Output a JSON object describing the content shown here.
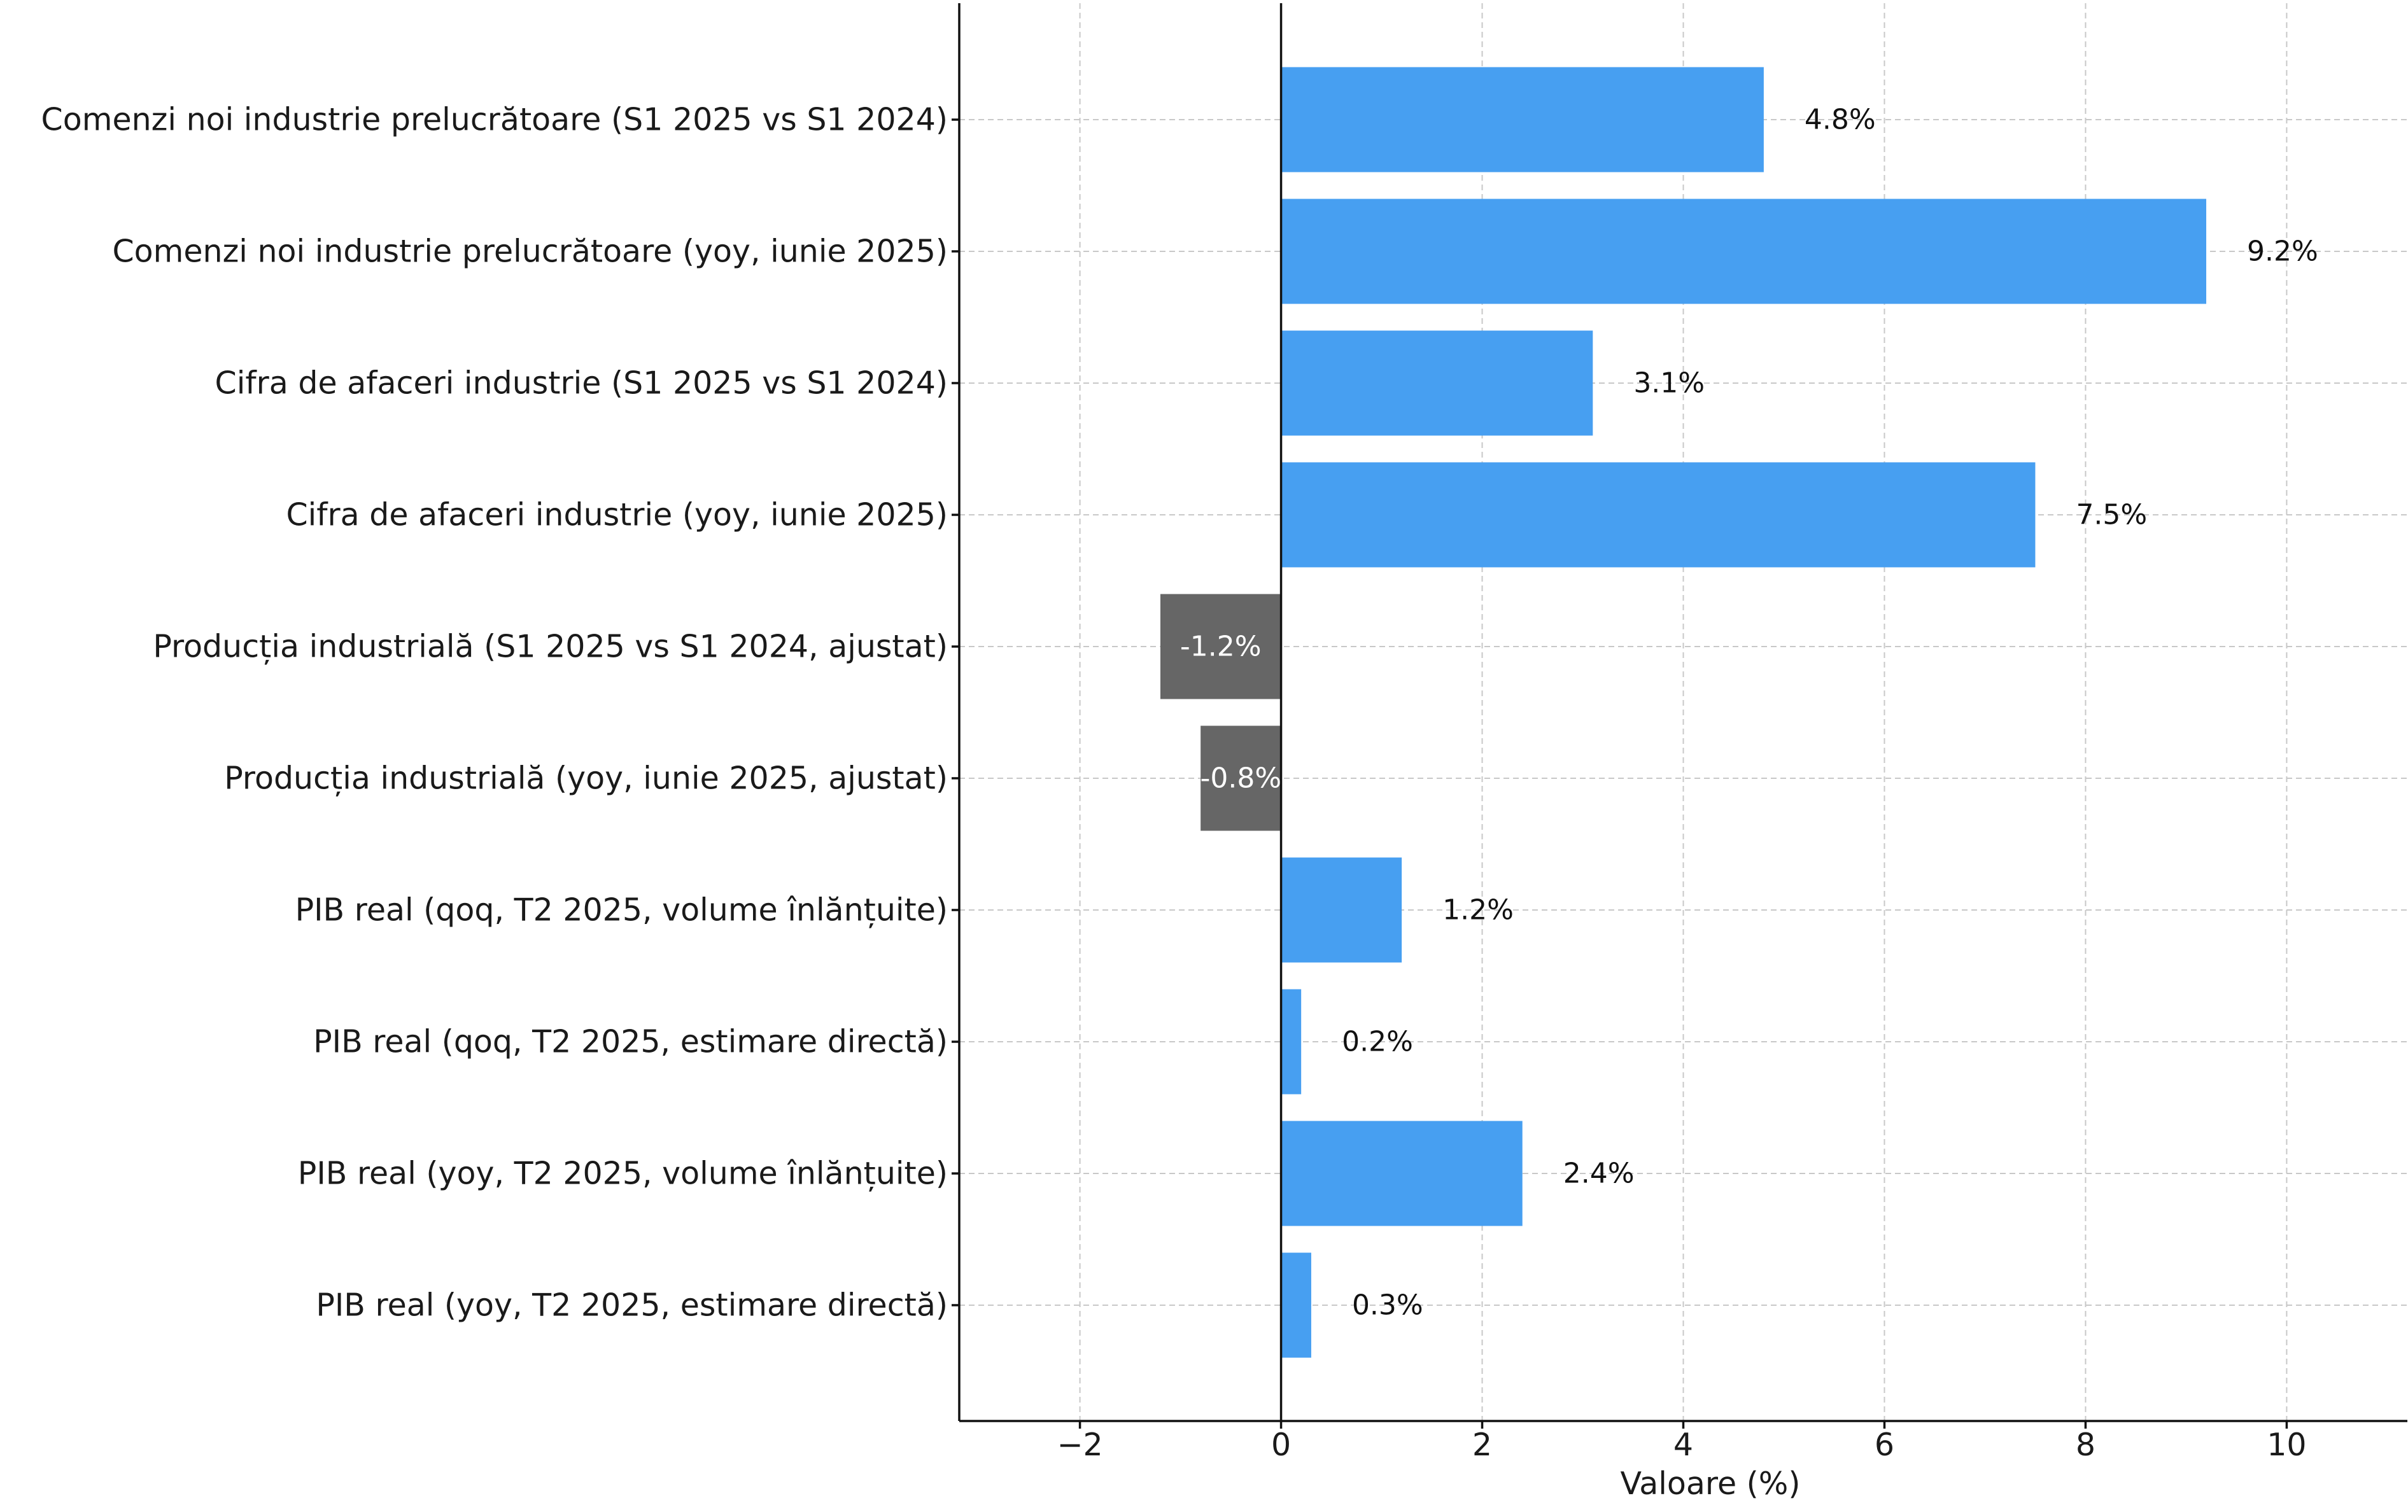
{
  "chart_data": {
    "type": "bar",
    "orientation": "horizontal",
    "title": "",
    "xlabel": "Valoare (%)",
    "ylabel": "",
    "xlim": [
      -3.2,
      11.2
    ],
    "xticks": [
      -2,
      0,
      2,
      4,
      6,
      8,
      10
    ],
    "xtick_labels": [
      "−2",
      "0",
      "2",
      "4",
      "6",
      "8",
      "10"
    ],
    "grid": true,
    "categories": [
      "Comenzi noi industrie prelucrătoare (S1 2025 vs S1 2024)",
      "Comenzi noi industrie prelucrătoare (yoy, iunie 2025)",
      "Cifra de afaceri industrie (S1 2025 vs S1 2024)",
      "Cifra de afaceri industrie (yoy, iunie 2025)",
      "Producția industrială (S1 2025 vs S1 2024, ajustat)",
      "Producția industrială (yoy, iunie 2025, ajustat)",
      "PIB real (qoq, T2 2025, volume înlănțuite)",
      "PIB real (qoq, T2 2025, estimare directă)",
      "PIB real (yoy, T2 2025, volume înlănțuite)",
      "PIB real (yoy, T2 2025, estimare directă)"
    ],
    "values": [
      4.8,
      9.2,
      3.1,
      7.5,
      -1.2,
      -0.8,
      1.2,
      0.2,
      2.4,
      0.3
    ],
    "value_labels": [
      "4.8%",
      "9.2%",
      "3.1%",
      "7.5%",
      "-1.2%",
      "-0.8%",
      "1.2%",
      "0.2%",
      "2.4%",
      "0.3%"
    ],
    "colors": {
      "positive": "#479ff1",
      "negative": "#666666",
      "positive_label": "#111111",
      "negative_label": "#ffffff",
      "grid": "#c8c8c8",
      "axis": "#111111"
    }
  }
}
